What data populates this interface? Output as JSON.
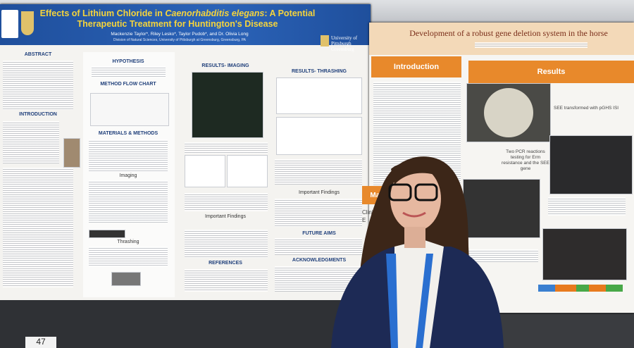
{
  "left_poster": {
    "title_parts": [
      "Effects of Lithium Chloride in ",
      "Caenorhabditis elegans",
      ": A Potential Therapeutic Treatment for Huntington's Disease"
    ],
    "authors": "Mackenzie Taylor*, Riley Lesko*, Taylor Pudob*, and Dr. Olivia Long",
    "affiliation": "Division of Natural Sciences, University of Pittsburgh at Greensburg, Greensburg, PA",
    "university": "University of Pittsburgh Greensburg",
    "sections": [
      "ABSTRACT",
      "INTRODUCTION",
      "HYPOTHESIS",
      "METHOD FLOW CHART",
      "MATERIALS & METHODS",
      "Imaging",
      "Thrashing",
      "RESULTS- IMAGING",
      "Important Findings",
      "REFERENCES",
      "RESULTS- THRASHING",
      "Important Findings",
      "FUTURE AIMS",
      "ACKNOWLEDGMENTS"
    ]
  },
  "right_poster": {
    "title": "Development of a robust gene deletion system in the horse",
    "sections": [
      "Introduction",
      "Results",
      "Mat"
    ],
    "captions": [
      "SEE transformed with pGHS ISI",
      "Two PCR reactions testing for Erm resistance and the SEE gene"
    ],
    "body_fragment": "Clinical S RepA E"
  },
  "board_number": "47"
}
